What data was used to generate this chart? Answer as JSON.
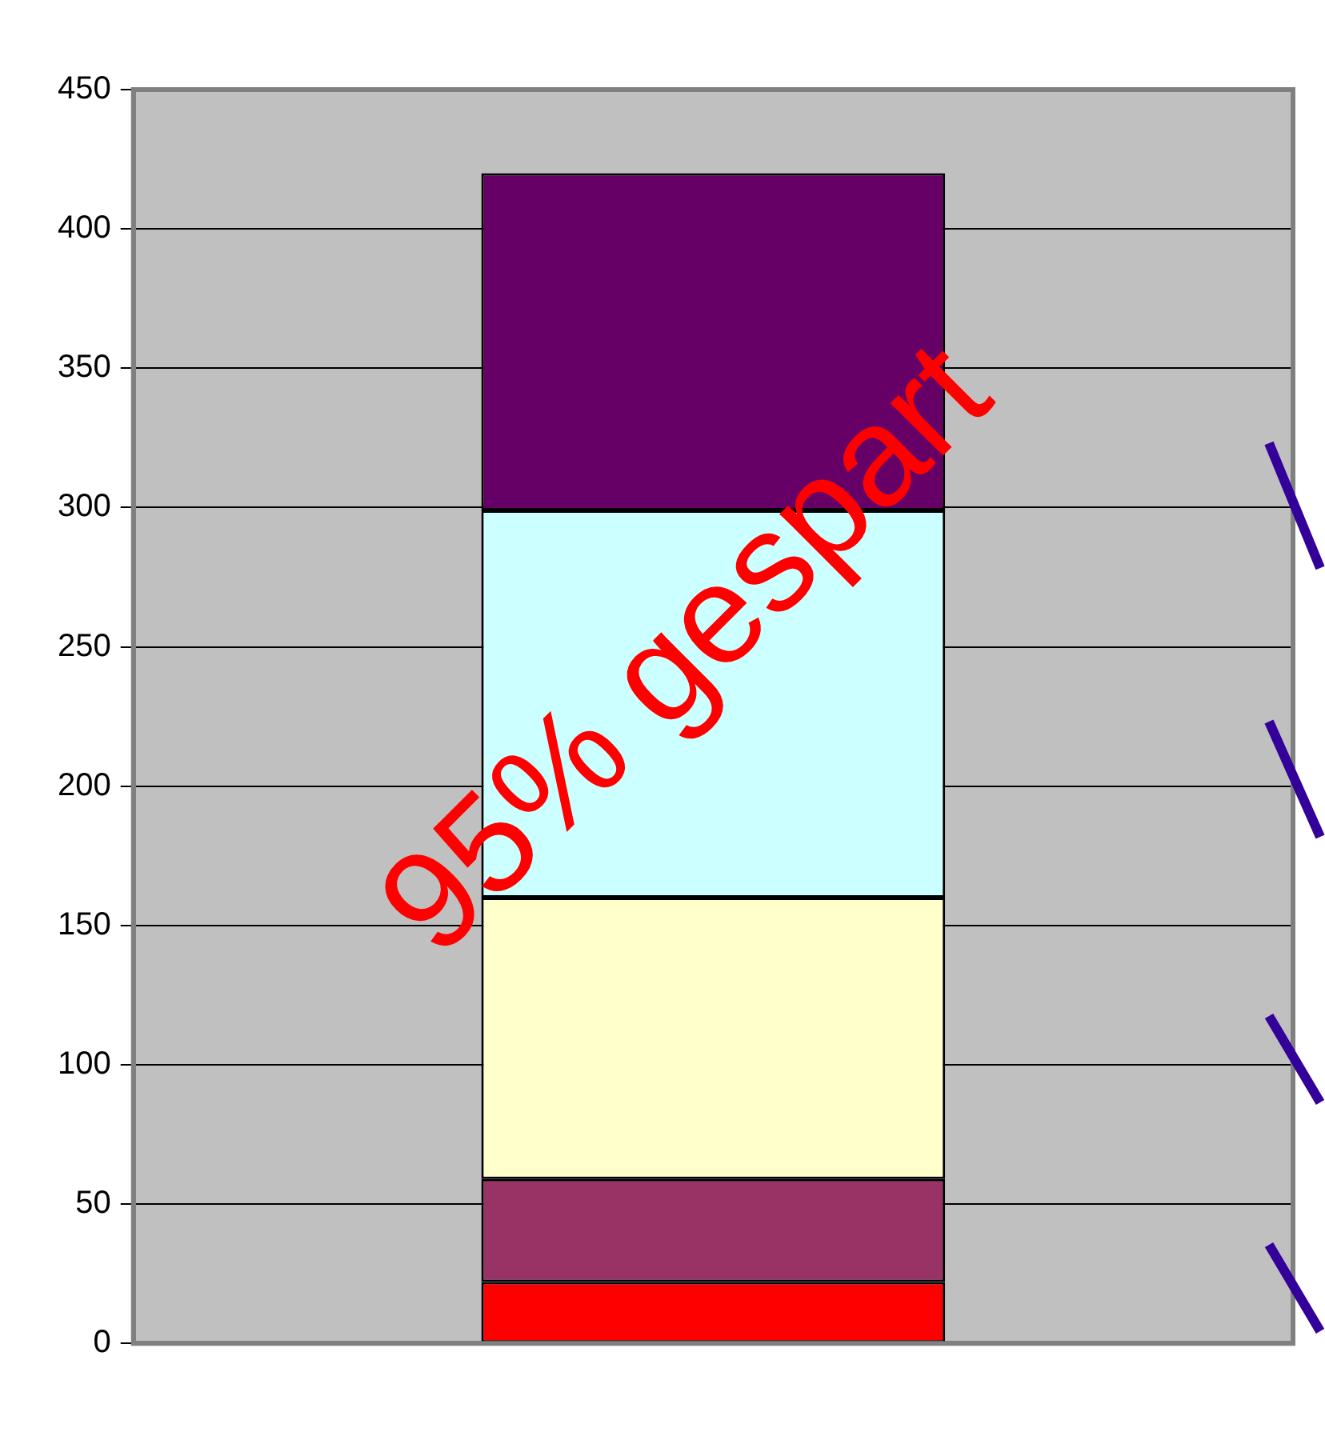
{
  "chart_data": {
    "type": "bar",
    "stacked": true,
    "categories": [
      null
    ],
    "series": [
      {
        "color": "#ff0000",
        "values": [
          22
        ]
      },
      {
        "color": "#993366",
        "values": [
          37
        ]
      },
      {
        "color": "#ffffcc",
        "values": [
          101
        ]
      },
      {
        "color": "#ccffff",
        "values": [
          139
        ]
      },
      {
        "color": "#660066",
        "values": [
          121
        ]
      }
    ],
    "ylim": [
      0,
      450
    ],
    "yticks": [
      0,
      50,
      100,
      150,
      200,
      250,
      300,
      350,
      400,
      450
    ],
    "grid": "y",
    "legend": false,
    "annotations": [
      "95% gespart"
    ]
  }
}
